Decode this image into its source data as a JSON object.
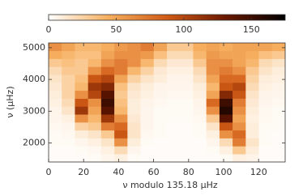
{
  "chart_data": {
    "type": "heatmap",
    "xlabel": "ν modulo 135.18 μHz",
    "ylabel": "ν (μHz)",
    "xlim": [
      0,
      135.18
    ],
    "xticks": [
      0,
      20,
      40,
      60,
      80,
      100,
      120
    ],
    "ylim": [
      1400,
      5150
    ],
    "yticks": [
      2000,
      3000,
      4000,
      5000
    ],
    "clim": [
      0,
      175
    ],
    "cticks": [
      0,
      50,
      100,
      150
    ],
    "colormap": [
      "#ffffff",
      "#f7b060",
      "#d05a15",
      "#6a1800",
      "#000000"
    ],
    "xbins": [
      0,
      7.51,
      15.02,
      22.53,
      30.04,
      37.55,
      45.06,
      52.57,
      60.08,
      67.59,
      75.1,
      82.61,
      90.12,
      97.63,
      105.14,
      112.65,
      120.16,
      127.67,
      135.18
    ],
    "ybins": [
      1400,
      1650,
      1900,
      2150,
      2400,
      2650,
      2900,
      3150,
      3400,
      3650,
      3900,
      4150,
      4400,
      4650,
      4900,
      5150
    ],
    "z": [
      [
        2,
        2,
        2,
        3,
        5,
        8,
        3,
        2,
        2,
        2,
        2,
        2,
        2,
        3,
        8,
        6,
        2,
        2
      ],
      [
        2,
        2,
        3,
        4,
        8,
        20,
        5,
        2,
        2,
        2,
        2,
        2,
        3,
        8,
        30,
        10,
        2,
        2
      ],
      [
        3,
        3,
        5,
        8,
        15,
        60,
        10,
        3,
        2,
        2,
        2,
        2,
        5,
        20,
        70,
        15,
        3,
        2
      ],
      [
        3,
        4,
        10,
        15,
        30,
        90,
        15,
        4,
        3,
        2,
        2,
        3,
        8,
        60,
        80,
        10,
        3,
        2
      ],
      [
        4,
        5,
        25,
        30,
        70,
        80,
        15,
        5,
        3,
        2,
        2,
        3,
        15,
        90,
        60,
        10,
        3,
        3
      ],
      [
        5,
        8,
        60,
        40,
        110,
        60,
        12,
        5,
        3,
        3,
        3,
        4,
        30,
        140,
        50,
        8,
        4,
        3
      ],
      [
        6,
        15,
        110,
        50,
        140,
        40,
        10,
        5,
        3,
        3,
        3,
        5,
        60,
        160,
        60,
        10,
        4,
        3
      ],
      [
        8,
        20,
        90,
        60,
        150,
        35,
        10,
        6,
        4,
        3,
        3,
        6,
        80,
        150,
        70,
        12,
        5,
        4
      ],
      [
        10,
        25,
        60,
        100,
        140,
        30,
        12,
        8,
        5,
        4,
        4,
        8,
        50,
        120,
        90,
        15,
        6,
        5
      ],
      [
        12,
        25,
        40,
        110,
        120,
        35,
        15,
        10,
        6,
        5,
        5,
        10,
        40,
        90,
        100,
        20,
        8,
        6
      ],
      [
        15,
        25,
        35,
        90,
        100,
        50,
        25,
        15,
        10,
        6,
        6,
        15,
        50,
        80,
        80,
        25,
        10,
        8
      ],
      [
        20,
        30,
        30,
        60,
        80,
        70,
        40,
        25,
        12,
        8,
        8,
        20,
        60,
        70,
        60,
        30,
        15,
        10
      ],
      [
        30,
        35,
        30,
        40,
        60,
        70,
        60,
        40,
        20,
        12,
        12,
        30,
        60,
        60,
        50,
        40,
        20,
        15
      ],
      [
        45,
        40,
        35,
        35,
        50,
        60,
        60,
        55,
        35,
        20,
        20,
        40,
        55,
        50,
        50,
        45,
        35,
        30
      ],
      [
        60,
        50,
        40,
        40,
        45,
        55,
        60,
        70,
        50,
        30,
        30,
        45,
        50,
        45,
        50,
        50,
        50,
        45
      ]
    ]
  }
}
